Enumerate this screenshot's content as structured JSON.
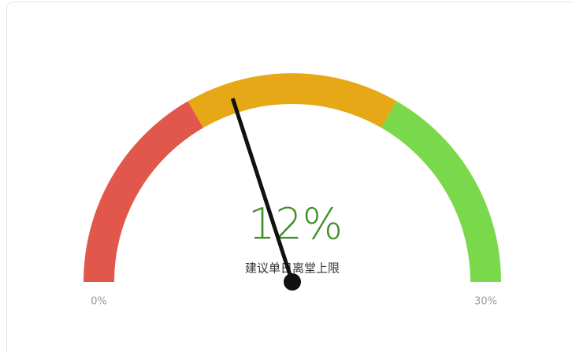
{
  "chart_data": {
    "type": "gauge",
    "value": 12,
    "value_label": "12%",
    "subtitle": "建议单日离堂上限",
    "ylim": [
      0,
      30
    ],
    "yticks": [
      {
        "value": 0,
        "label": "0%"
      },
      {
        "value": 30,
        "label": "30%"
      }
    ],
    "bands": [
      {
        "from": 0,
        "to": 10,
        "color": "#e1574c"
      },
      {
        "from": 10,
        "to": 20,
        "color": "#e6a817"
      },
      {
        "from": 20,
        "to": 30,
        "color": "#7ad94a"
      }
    ],
    "needle_color": "#111111",
    "value_color": "#3f8f2a"
  }
}
